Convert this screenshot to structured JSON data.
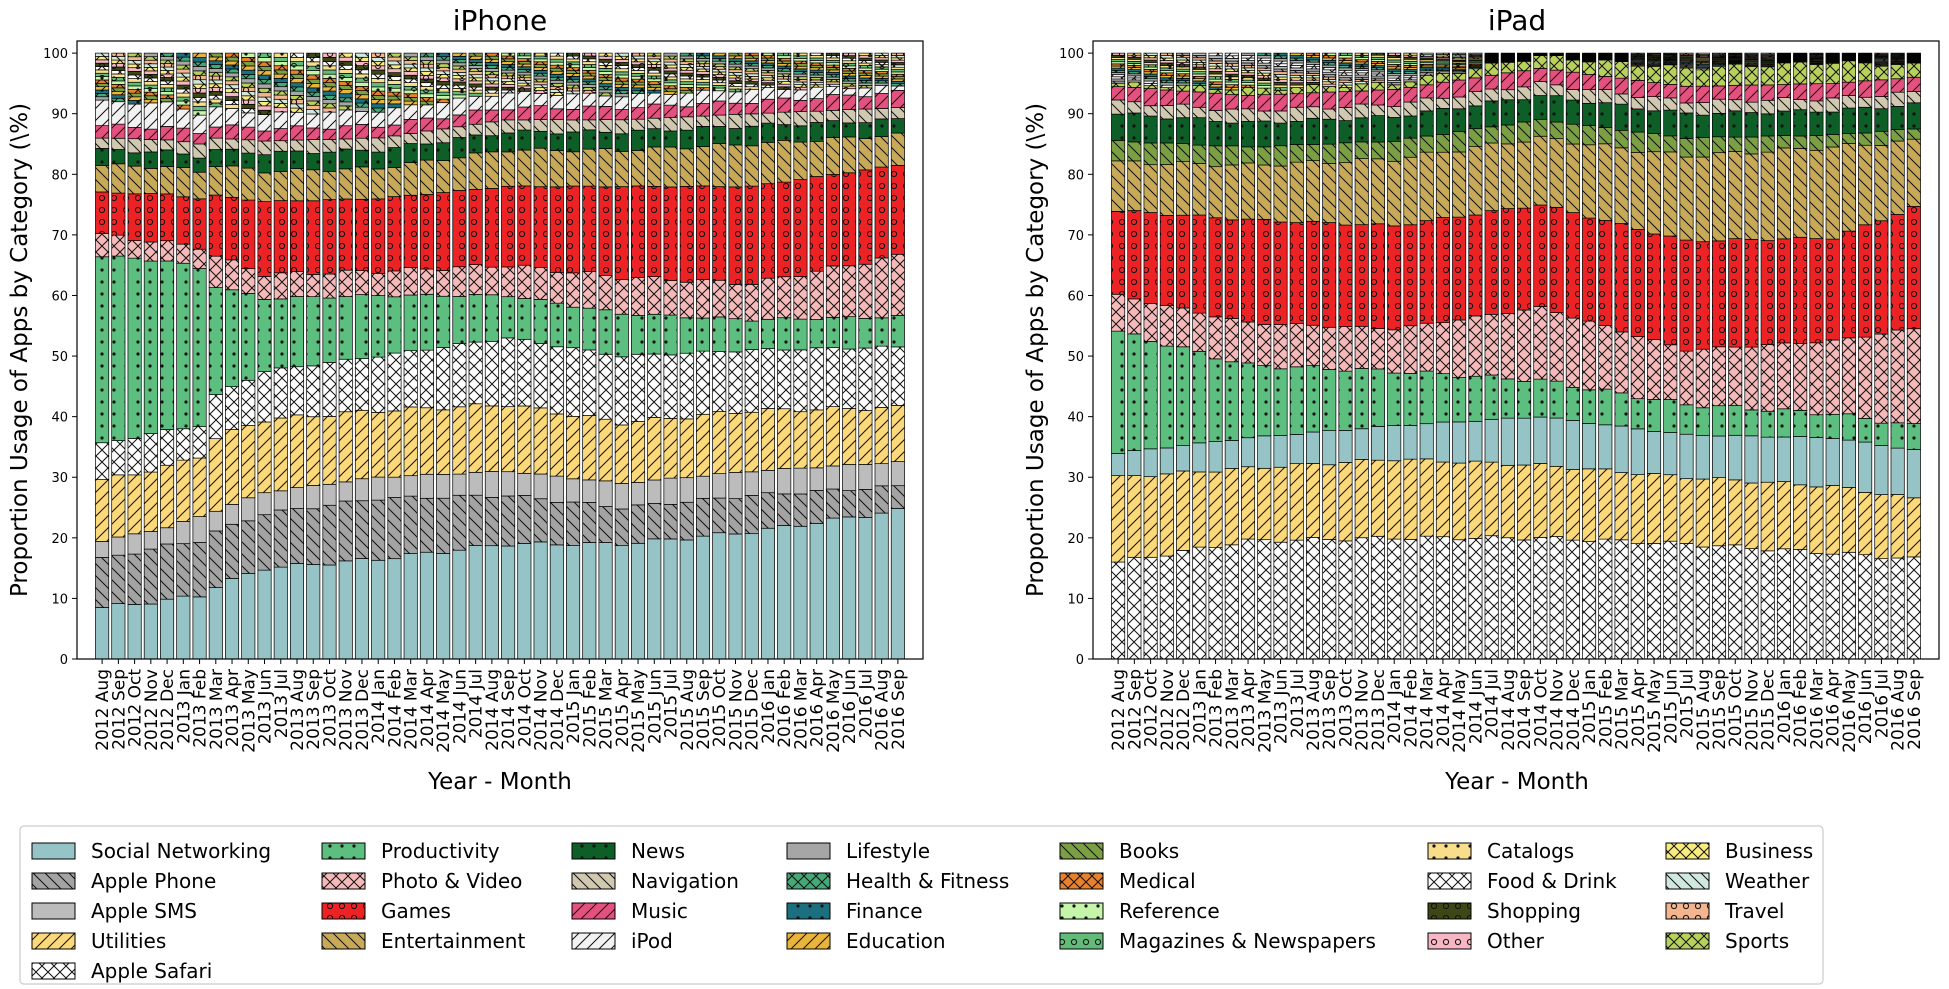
{
  "chart_data": [
    {
      "type": "bar",
      "stacked": true,
      "title": "iPhone",
      "xlabel": "Year - Month",
      "ylabel": "Proportion Usage of Apps by Category (\\%)",
      "ylim": [
        0,
        102
      ],
      "yticks": [
        0,
        10,
        20,
        30,
        40,
        50,
        60,
        70,
        80,
        90,
        100
      ],
      "categories": [
        "2012 Aug",
        "2012 Sep",
        "2012 Oct",
        "2012 Nov",
        "2012 Dec",
        "2013 Jan",
        "2013 Feb",
        "2013 Mar",
        "2013 Apr",
        "2013 May",
        "2013 Jun",
        "2013 Jul",
        "2013 Aug",
        "2013 Sep",
        "2013 Oct",
        "2013 Nov",
        "2013 Dec",
        "2014 Jan",
        "2014 Feb",
        "2014 Mar",
        "2014 Apr",
        "2014 May",
        "2014 Jun",
        "2014 Jul",
        "2014 Aug",
        "2014 Sep",
        "2014 Oct",
        "2014 Nov",
        "2014 Dec",
        "2015 Jan",
        "2015 Feb",
        "2015 Mar",
        "2015 Apr",
        "2015 May",
        "2015 Jun",
        "2015 Jul",
        "2015 Aug",
        "2015 Sep",
        "2015 Oct",
        "2015 Nov",
        "2015 Dec",
        "2016 Jan",
        "2016 Feb",
        "2016 Mar",
        "2016 Apr",
        "2016 May",
        "2016 Jun",
        "2016 Jul",
        "2016 Aug",
        "2016 Sep"
      ],
      "anchor_series": [
        "Social Networking",
        "Apple Phone",
        "Apple SMS",
        "Utilities",
        "Apple Safari",
        "Productivity",
        "Photo & Video",
        "Games",
        "Entertainment",
        "News",
        "Navigation",
        "Music",
        "iPod"
      ],
      "anchors": [
        {
          "x": 0,
          "values": [
            8.5,
            8,
            3,
            10,
            6,
            31,
            3.5,
            7,
            4.5,
            2.5,
            2,
            2,
            4
          ]
        },
        {
          "x": 4,
          "values": [
            9.7,
            9,
            3,
            10,
            6,
            28,
            3,
            8,
            4.5,
            2.5,
            2,
            2,
            4
          ]
        },
        {
          "x": 6,
          "values": [
            10.5,
            9,
            4,
            10,
            5,
            26,
            3.5,
            8,
            4.5,
            2.5,
            2,
            2,
            3
          ]
        },
        {
          "x": 7,
          "values": [
            12,
            9,
            3.5,
            12,
            7,
            18,
            5,
            10,
            5,
            2.5,
            2,
            2,
            3
          ]
        },
        {
          "x": 10,
          "values": [
            15,
            9,
            3.5,
            12,
            8,
            12,
            4,
            12,
            5,
            3,
            2,
            2,
            2.5
          ]
        },
        {
          "x": 17,
          "values": [
            16.5,
            10,
            3.5,
            11,
            9,
            10,
            4,
            12,
            5,
            3,
            2,
            2,
            2.5
          ]
        },
        {
          "x": 25,
          "values": [
            19,
            8,
            4,
            11,
            11,
            7,
            5,
            13,
            6,
            3,
            2,
            2,
            2.5
          ]
        },
        {
          "x": 32,
          "values": [
            19,
            6,
            4,
            10,
            11,
            7,
            6,
            15,
            6,
            3,
            2,
            2,
            2
          ]
        },
        {
          "x": 40,
          "values": [
            21,
            6,
            4,
            10,
            10,
            5,
            6,
            16,
            7,
            3,
            2,
            2,
            2
          ]
        },
        {
          "x": 49,
          "values": [
            24.5,
            4,
            4,
            9,
            10,
            5,
            10,
            15,
            5,
            2.5,
            2,
            2.5,
            1
          ]
        }
      ],
      "other_series_stack_top": 100
    },
    {
      "type": "bar",
      "stacked": true,
      "title": "iPad",
      "xlabel": "Year - Month",
      "ylabel": "Proportion Usage of Apps by Category (\\%)",
      "ylim": [
        0,
        102
      ],
      "yticks": [
        0,
        10,
        20,
        30,
        40,
        50,
        60,
        70,
        80,
        90,
        100
      ],
      "categories": [
        "2012 Aug",
        "2012 Sep",
        "2012 Oct",
        "2012 Nov",
        "2012 Dec",
        "2013 Jan",
        "2013 Feb",
        "2013 Mar",
        "2013 Apr",
        "2013 May",
        "2013 Jun",
        "2013 Jul",
        "2013 Aug",
        "2013 Sep",
        "2013 Oct",
        "2013 Nov",
        "2013 Dec",
        "2014 Jan",
        "2014 Feb",
        "2014 Mar",
        "2014 Apr",
        "2014 May",
        "2014 Jun",
        "2014 Jul",
        "2014 Aug",
        "2014 Sep",
        "2014 Oct",
        "2014 Nov",
        "2014 Dec",
        "2015 Jan",
        "2015 Feb",
        "2015 Mar",
        "2015 Apr",
        "2015 May",
        "2015 Jun",
        "2015 Jul",
        "2015 Aug",
        "2015 Sep",
        "2015 Oct",
        "2015 Nov",
        "2015 Dec",
        "2016 Jan",
        "2016 Feb",
        "2016 Mar",
        "2016 Apr",
        "2016 May",
        "2016 Jun",
        "2016 Jul",
        "2016 Aug",
        "2016 Sep"
      ],
      "anchor_series": [
        "Food & Drink",
        "Utilities",
        "Social Networking",
        "Productivity",
        "Photo & Video",
        "Games",
        "Entertainment",
        "Books",
        "News",
        "Navigation",
        "Music",
        "Sports"
      ],
      "anchors": [
        {
          "x": 0,
          "values": [
            16,
            14,
            4,
            20,
            6,
            14,
            8,
            3.5,
            4.5,
            2,
            2.5,
            0.5
          ]
        },
        {
          "x": 8,
          "values": [
            19.5,
            12,
            5,
            12,
            7,
            17,
            9,
            3,
            4,
            2,
            2.5,
            1
          ]
        },
        {
          "x": 17,
          "values": [
            20,
            13,
            5.5,
            9,
            7,
            17,
            11,
            3,
            4,
            2,
            2.5,
            1
          ]
        },
        {
          "x": 26,
          "values": [
            20,
            12,
            8,
            6,
            12,
            17,
            11,
            3,
            4,
            2,
            2.5,
            2
          ]
        },
        {
          "x": 35,
          "values": [
            19,
            11,
            7,
            5,
            9,
            18,
            14,
            3,
            4,
            2,
            2.5,
            3
          ]
        },
        {
          "x": 44,
          "values": [
            17.5,
            11,
            8,
            4,
            12,
            17,
            15,
            2,
            4,
            2,
            2.5,
            3.5
          ]
        },
        {
          "x": 49,
          "values": [
            16.5,
            10,
            8,
            4,
            16,
            20,
            11,
            2,
            4,
            2,
            2.5,
            2
          ]
        }
      ],
      "other_series_stack_top": 100
    }
  ],
  "legend": {
    "items": [
      {
        "label": "Social Networking",
        "color": "#96c3c5",
        "hatch": "none"
      },
      {
        "label": "Apple Phone",
        "color": "#a3a3a3",
        "hatch": "back"
      },
      {
        "label": "Apple SMS",
        "color": "#bcbcbc",
        "hatch": "none"
      },
      {
        "label": "Utilities",
        "color": "#fbd878",
        "hatch": "fwd"
      },
      {
        "label": "Apple Safari",
        "color": "#ffffff",
        "hatch": "cross"
      },
      {
        "label": "Productivity",
        "color": "#5cbf7f",
        "hatch": "dot"
      },
      {
        "label": "Photo & Video",
        "color": "#f6b9b9",
        "hatch": "cross"
      },
      {
        "label": "Games",
        "color": "#ec2224",
        "hatch": "circle"
      },
      {
        "label": "Entertainment",
        "color": "#c7a957",
        "hatch": "back"
      },
      {
        "label": "News",
        "color": "#0d5f27",
        "hatch": "dot"
      },
      {
        "label": "Navigation",
        "color": "#d1c8b0",
        "hatch": "back"
      },
      {
        "label": "Music",
        "color": "#e5517f",
        "hatch": "fwd"
      },
      {
        "label": "iPod",
        "color": "#f2f2f2",
        "hatch": "fwd"
      },
      {
        "label": "Lifestyle",
        "color": "#a6a6a6",
        "hatch": "none"
      },
      {
        "label": "Health & Fitness",
        "color": "#45a878",
        "hatch": "cross"
      },
      {
        "label": "Finance",
        "color": "#1b6f7e",
        "hatch": "dot"
      },
      {
        "label": "Education",
        "color": "#e9b43a",
        "hatch": "fwd"
      },
      {
        "label": "Books",
        "color": "#7b9f43",
        "hatch": "back"
      },
      {
        "label": "Medical",
        "color": "#e8802c",
        "hatch": "cross"
      },
      {
        "label": "Reference",
        "color": "#c4f5a9",
        "hatch": "dot"
      },
      {
        "label": "Magazines & Newspapers",
        "color": "#62bb78",
        "hatch": "circle"
      },
      {
        "label": "Catalogs",
        "color": "#f8de8a",
        "hatch": "dot"
      },
      {
        "label": "Food & Drink",
        "color": "#ffffff",
        "hatch": "cross"
      },
      {
        "label": "Shopping",
        "color": "#3d4716",
        "hatch": "circle"
      },
      {
        "label": "Other",
        "color": "#f6b6c3",
        "hatch": "circle"
      },
      {
        "label": "Business",
        "color": "#f8ec7c",
        "hatch": "cross"
      },
      {
        "label": "Weather",
        "color": "#cfe9df",
        "hatch": "back"
      },
      {
        "label": "Travel",
        "color": "#f2b58d",
        "hatch": "circle"
      },
      {
        "label": "Sports",
        "color": "#b7d15b",
        "hatch": "cross"
      }
    ]
  }
}
